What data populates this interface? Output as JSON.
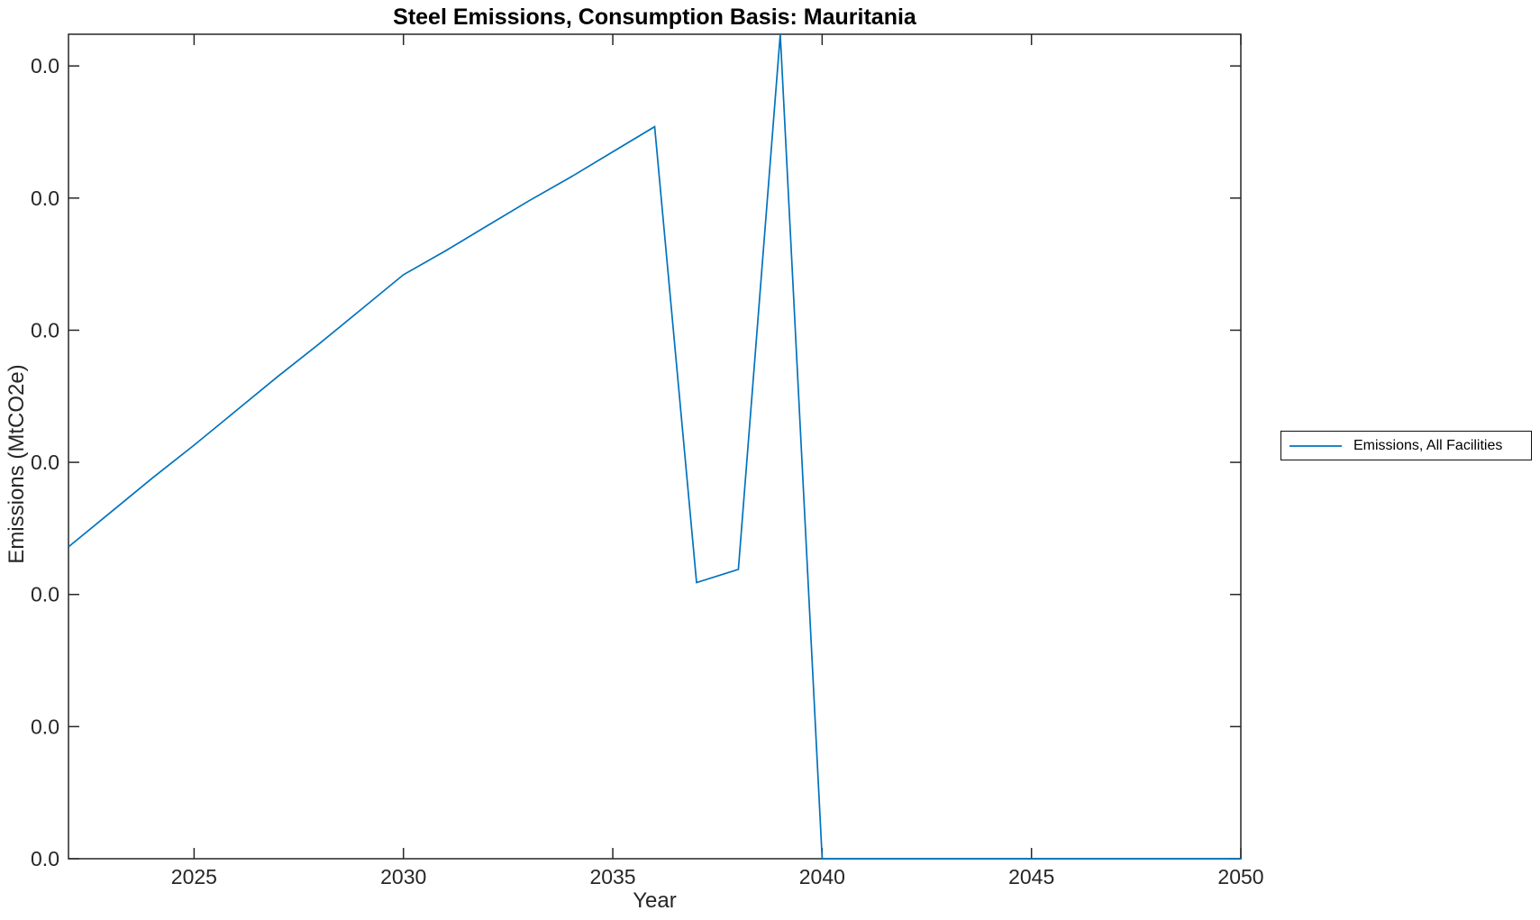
{
  "chart_data": {
    "type": "line",
    "title": "Steel Emissions, Consumption Basis: Mauritania",
    "xlabel": "Year",
    "ylabel": "Emissions (MtCO2e)",
    "grid": false,
    "box": true,
    "axis_color": "#262626",
    "tick_label_color": "#262626",
    "line_color": "#0072BD",
    "background": "#ffffff",
    "xlim": [
      2022,
      2050
    ],
    "ylim": [
      0,
      6.24
    ],
    "y_value_note": "All y tick labels display 0.0; series values are estimated in y-tick units (1 unit = one tick interval)",
    "xticks": {
      "values": [
        2025,
        2030,
        2035,
        2040,
        2045,
        2050
      ],
      "labels": [
        "2025",
        "2030",
        "2035",
        "2040",
        "2045",
        "2050"
      ]
    },
    "yticks": {
      "values": [
        0,
        1,
        2,
        3,
        4,
        5,
        6
      ],
      "labels": [
        "0.0",
        "0.0",
        "0.0",
        "0.0",
        "0.0",
        "0.0",
        "0.0"
      ]
    },
    "x": [
      2022,
      2023,
      2024,
      2025,
      2026,
      2027,
      2028,
      2029,
      2030,
      2031,
      2032,
      2033,
      2034,
      2035,
      2036,
      2037,
      2038,
      2039,
      2040,
      2041,
      2042,
      2043,
      2044,
      2045,
      2046,
      2047,
      2048,
      2049,
      2050
    ],
    "series": [
      {
        "name": "Emissions, All Facilities",
        "color": "#0072BD",
        "values": [
          2.36,
          2.62,
          2.88,
          3.13,
          3.39,
          3.65,
          3.9,
          4.16,
          4.42,
          4.6,
          4.79,
          4.98,
          5.16,
          5.35,
          5.54,
          2.09,
          2.19,
          6.24,
          0.0,
          0.0,
          0.0,
          0.0,
          0.0,
          0.0,
          0.0,
          0.0,
          0.0,
          0.0,
          0.0
        ]
      }
    ],
    "legend": {
      "position": "right-outside",
      "entries": [
        {
          "label": "Emissions, All Facilities",
          "color": "#0072BD"
        }
      ]
    }
  }
}
